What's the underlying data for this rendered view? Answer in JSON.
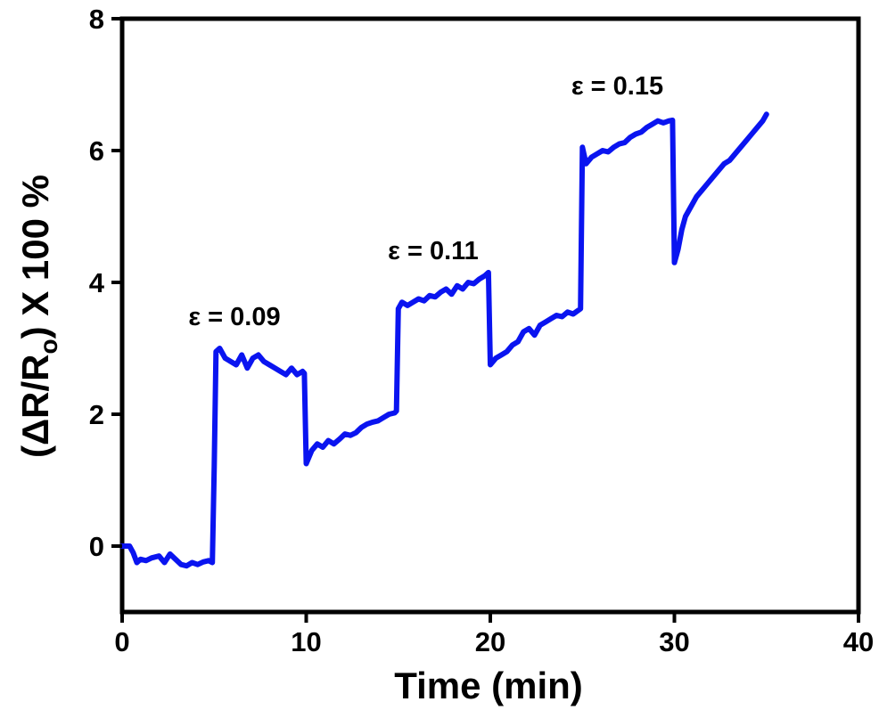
{
  "chart_data": {
    "type": "line",
    "xlabel": "Time (min)",
    "ylabel": {
      "pre": "(ΔR/R",
      "sub": "o",
      "post": ") X 100 %"
    },
    "xlim": [
      0,
      40
    ],
    "ylim": [
      -1,
      8
    ],
    "xticks": [
      0,
      10,
      20,
      30,
      40
    ],
    "yticks": [
      0,
      2,
      4,
      6,
      8
    ],
    "grid": false,
    "legend": "none",
    "colors": {
      "line": "#0a14f0",
      "axes": "#000000"
    },
    "annotations": [
      {
        "text": "ε = 0.09",
        "x": 6.1,
        "y": 3.35
      },
      {
        "text": "ε = 0.11",
        "x": 16.9,
        "y": 4.35
      },
      {
        "text": "ε = 0.15",
        "x": 26.9,
        "y": 6.85
      }
    ],
    "series": [
      {
        "x": [
          0,
          0.4,
          0.6,
          0.8,
          1.0,
          1.3,
          1.6,
          2.0,
          2.3,
          2.6,
          2.9,
          3.2,
          3.5,
          3.8,
          4.1,
          4.4,
          4.7,
          4.9,
          5.0,
          5.1,
          5.3,
          5.6,
          5.9,
          6.2,
          6.5,
          6.8,
          7.1,
          7.4,
          7.7,
          8.0,
          8.3,
          8.6,
          8.9,
          9.2,
          9.5,
          9.8,
          9.9,
          10.0,
          10.3,
          10.6,
          10.9,
          11.2,
          11.5,
          11.8,
          12.1,
          12.4,
          12.7,
          13.0,
          13.3,
          13.6,
          13.9,
          14.2,
          14.5,
          14.8,
          14.9,
          15.0,
          15.2,
          15.5,
          15.8,
          16.1,
          16.4,
          16.7,
          17.0,
          17.3,
          17.6,
          17.9,
          18.2,
          18.5,
          18.8,
          19.1,
          19.4,
          19.7,
          19.9,
          20.0,
          20.3,
          20.6,
          20.9,
          21.2,
          21.5,
          21.8,
          22.1,
          22.4,
          22.7,
          23.0,
          23.3,
          23.6,
          23.9,
          24.2,
          24.5,
          24.8,
          24.9,
          25.0,
          25.2,
          25.5,
          25.8,
          26.1,
          26.4,
          26.7,
          27.0,
          27.3,
          27.6,
          27.9,
          28.2,
          28.5,
          28.8,
          29.1,
          29.4,
          29.7,
          29.9,
          30.0,
          30.2,
          30.4,
          30.6,
          30.9,
          31.2,
          31.5,
          31.8,
          32.1,
          32.4,
          32.7,
          33.0,
          33.3,
          33.6,
          33.9,
          34.2,
          34.5,
          34.8,
          35.0
        ],
        "y": [
          0.0,
          0.0,
          -0.1,
          -0.25,
          -0.2,
          -0.22,
          -0.18,
          -0.15,
          -0.25,
          -0.12,
          -0.2,
          -0.28,
          -0.3,
          -0.25,
          -0.28,
          -0.24,
          -0.22,
          -0.25,
          1.2,
          2.95,
          3.0,
          2.85,
          2.8,
          2.75,
          2.9,
          2.7,
          2.85,
          2.9,
          2.8,
          2.75,
          2.7,
          2.65,
          2.6,
          2.7,
          2.6,
          2.65,
          2.62,
          1.25,
          1.45,
          1.55,
          1.5,
          1.6,
          1.55,
          1.62,
          1.7,
          1.68,
          1.72,
          1.8,
          1.85,
          1.88,
          1.9,
          1.95,
          2.0,
          2.02,
          2.05,
          3.6,
          3.7,
          3.65,
          3.7,
          3.75,
          3.72,
          3.8,
          3.78,
          3.85,
          3.9,
          3.82,
          3.95,
          3.9,
          4.0,
          3.98,
          4.05,
          4.1,
          4.15,
          2.75,
          2.85,
          2.9,
          2.95,
          3.05,
          3.1,
          3.25,
          3.3,
          3.2,
          3.35,
          3.4,
          3.45,
          3.5,
          3.48,
          3.55,
          3.52,
          3.58,
          3.6,
          6.05,
          5.8,
          5.9,
          5.95,
          6.0,
          5.98,
          6.05,
          6.1,
          6.12,
          6.2,
          6.25,
          6.28,
          6.35,
          6.4,
          6.45,
          6.42,
          6.45,
          6.46,
          4.3,
          4.5,
          4.8,
          5.0,
          5.15,
          5.3,
          5.4,
          5.5,
          5.6,
          5.7,
          5.8,
          5.85,
          5.95,
          6.05,
          6.15,
          6.25,
          6.35,
          6.45,
          6.55
        ]
      }
    ]
  }
}
